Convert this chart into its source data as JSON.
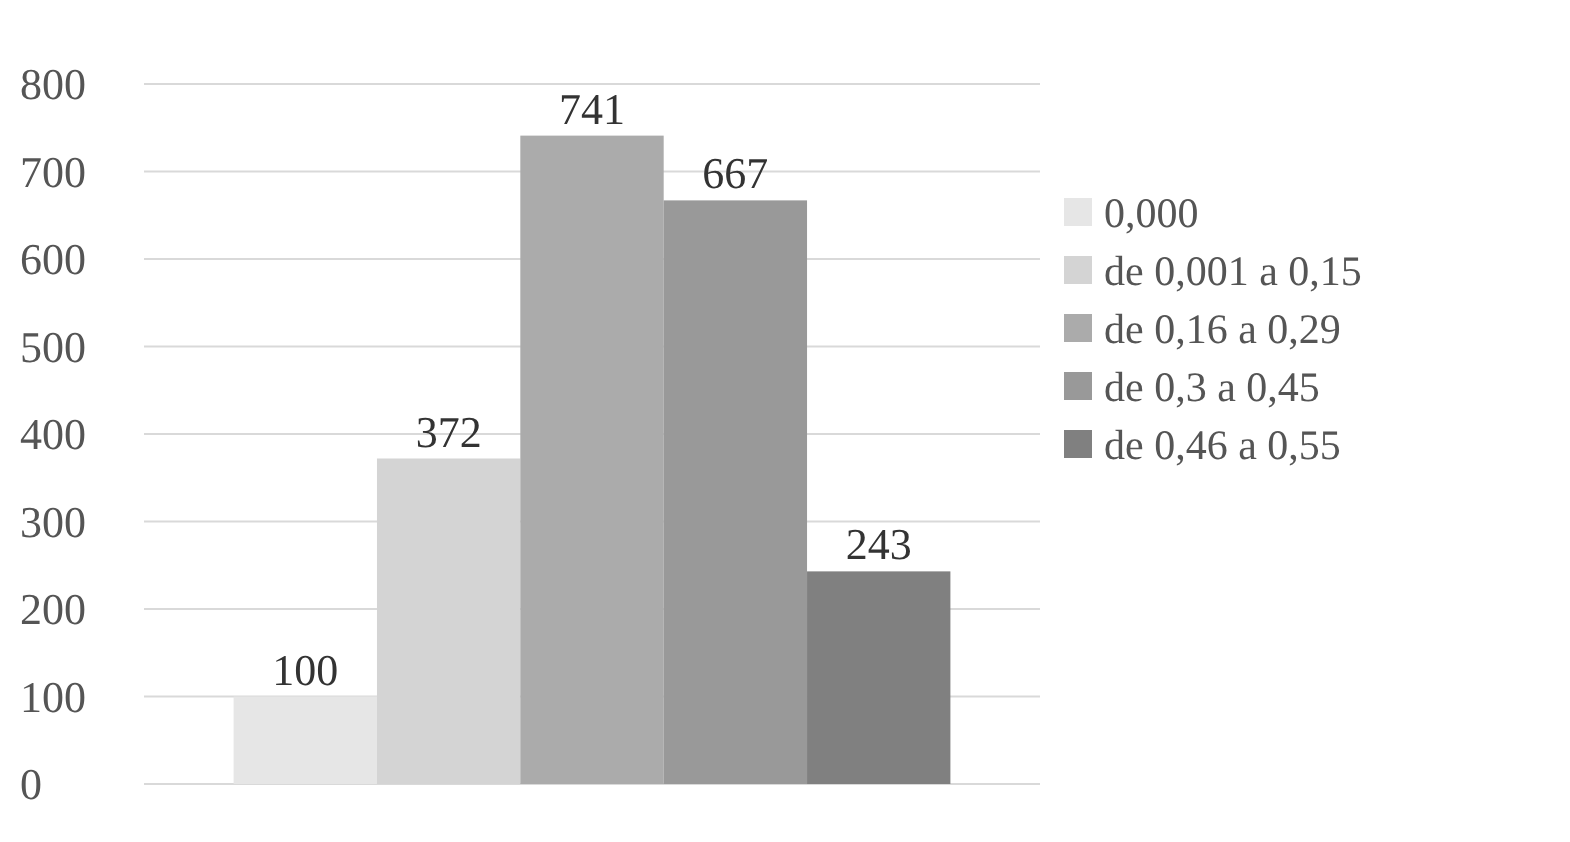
{
  "chart_data": {
    "type": "bar",
    "categories": [
      null
    ],
    "series": [
      {
        "name": "0,000",
        "color": "#e6e6e6",
        "values": [
          100
        ]
      },
      {
        "name": "de 0,001 a 0,15",
        "color": "#d4d4d4",
        "values": [
          372
        ]
      },
      {
        "name": "de 0,16 a 0,29",
        "color": "#ababab",
        "values": [
          741
        ]
      },
      {
        "name": "de 0,3 a 0,45",
        "color": "#999999",
        "values": [
          667
        ]
      },
      {
        "name": "de 0,46 a 0,55",
        "color": "#808080",
        "values": [
          243
        ]
      }
    ],
    "ylim": [
      0,
      800
    ],
    "yticks": [
      0,
      100,
      200,
      300,
      400,
      500,
      600,
      700,
      800
    ],
    "grid": "y",
    "legend": "right",
    "data_labels": true
  }
}
